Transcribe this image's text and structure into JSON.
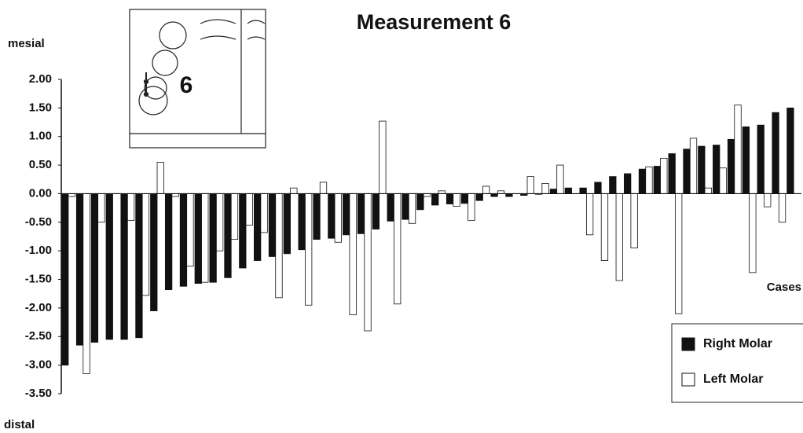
{
  "chart_data": {
    "type": "bar",
    "title": "Measurement 6",
    "y_top_label": "mesial",
    "y_bottom_label": "distal",
    "x_label": "Cases",
    "inset_label": "6",
    "categories": [
      null,
      null,
      null,
      null,
      null,
      null,
      null,
      null,
      null,
      null,
      null,
      null,
      null,
      null,
      null,
      null,
      null,
      null,
      null,
      null,
      null,
      null,
      null,
      null,
      null,
      null,
      null,
      null,
      null,
      null,
      null,
      null,
      null,
      null,
      null,
      null,
      null,
      null,
      null,
      null,
      null,
      null,
      null,
      null,
      null,
      null,
      null,
      null,
      null,
      null
    ],
    "series": [
      {
        "name": "Right Molar",
        "color": "#111111",
        "values": [
          -3.0,
          -2.65,
          -2.6,
          -2.55,
          -2.55,
          -2.52,
          -2.05,
          -1.68,
          -1.62,
          -1.57,
          -1.55,
          -1.47,
          -1.3,
          -1.17,
          -1.1,
          -1.05,
          -0.98,
          -0.8,
          -0.78,
          -0.72,
          -0.7,
          -0.62,
          -0.48,
          -0.45,
          -0.28,
          -0.2,
          -0.18,
          -0.17,
          -0.12,
          -0.05,
          -0.05,
          -0.03,
          0,
          0.08,
          0.1,
          0.1,
          0.2,
          0.3,
          0.35,
          0.43,
          0.48,
          0.7,
          0.78,
          0.83,
          0.85,
          0.95,
          1.17,
          1.2,
          1.42,
          1.5
        ]
      },
      {
        "name": "Left Molar",
        "color": "#ffffff",
        "values": [
          -0.05,
          -3.15,
          -0.5,
          null,
          -0.47,
          -1.78,
          0.55,
          -0.05,
          -1.27,
          -1.55,
          -1.0,
          -0.8,
          -0.55,
          -0.68,
          -1.82,
          0.1,
          -1.95,
          0.2,
          -0.85,
          -2.12,
          -2.4,
          1.27,
          -1.93,
          -0.52,
          -0.05,
          0.05,
          -0.22,
          -0.47,
          0.13,
          0.05,
          null,
          0.3,
          0.18,
          0.5,
          null,
          -0.72,
          -1.17,
          -1.52,
          -0.95,
          0.47,
          0.62,
          -2.1,
          0.97,
          0.1,
          0.45,
          1.55,
          -1.38,
          -0.23,
          -0.5,
          null
        ]
      }
    ],
    "ylim": [
      -3.5,
      2.0
    ],
    "yticks": [
      {
        "value": 2,
        "label": "2.00"
      },
      {
        "value": 1.5,
        "label": "1.50"
      },
      {
        "value": 1,
        "label": "1.00"
      },
      {
        "value": 0.5,
        "label": "0.50"
      },
      {
        "value": 0,
        "label": "0.00"
      },
      {
        "value": -0.5,
        "label": "-0.50"
      },
      {
        "value": -1,
        "label": "-1.00"
      },
      {
        "value": -1.5,
        "label": "-1.50"
      },
      {
        "value": -2,
        "label": "-2.00"
      },
      {
        "value": -2.5,
        "label": "-2.50"
      },
      {
        "value": -3,
        "label": "-3.00"
      },
      {
        "value": -3.5,
        "label": "-3.50"
      }
    ],
    "grid": false,
    "legend_position": "lower right"
  }
}
